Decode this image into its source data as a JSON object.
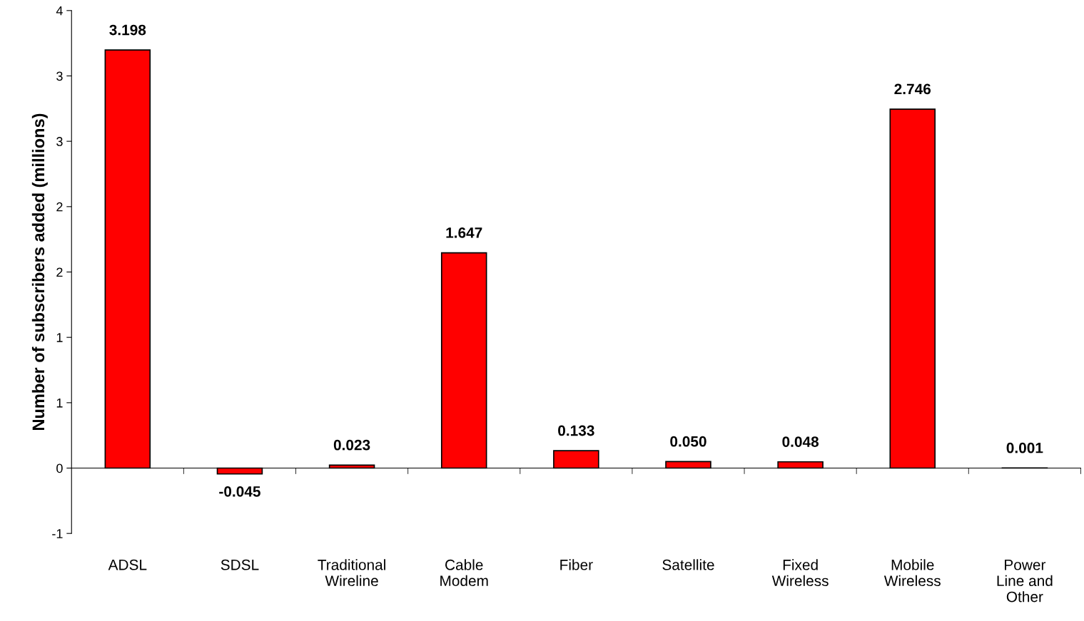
{
  "chart_data": {
    "type": "bar",
    "ylabel": "Number of subscribers added (millions)",
    "categories": [
      "ADSL",
      "SDSL",
      "Traditional\nWireline",
      "Cable\nModem",
      "Fiber",
      "Satellite",
      "Fixed\nWireless",
      "Mobile\nWireless",
      "Power\nLine and\nOther"
    ],
    "values": [
      3.198,
      -0.045,
      0.023,
      1.647,
      0.133,
      0.05,
      0.048,
      2.746,
      0.001
    ],
    "value_labels": [
      "3.198",
      "-0.045",
      "0.023",
      "1.647",
      "0.133",
      "0.050",
      "0.048",
      "2.746",
      "0.001"
    ],
    "color": "#ff0000",
    "ylim": [
      -0.5,
      3.5
    ],
    "yticks": [
      {
        "value": -0.5,
        "label": "-1"
      },
      {
        "value": 0,
        "label": "0"
      },
      {
        "value": 0.5,
        "label": "1"
      },
      {
        "value": 1.0,
        "label": "1"
      },
      {
        "value": 1.5,
        "label": "2"
      },
      {
        "value": 2.0,
        "label": "2"
      },
      {
        "value": 2.5,
        "label": "3"
      },
      {
        "value": 3.0,
        "label": "3"
      },
      {
        "value": 3.5,
        "label": "4"
      }
    ],
    "legend": false
  }
}
